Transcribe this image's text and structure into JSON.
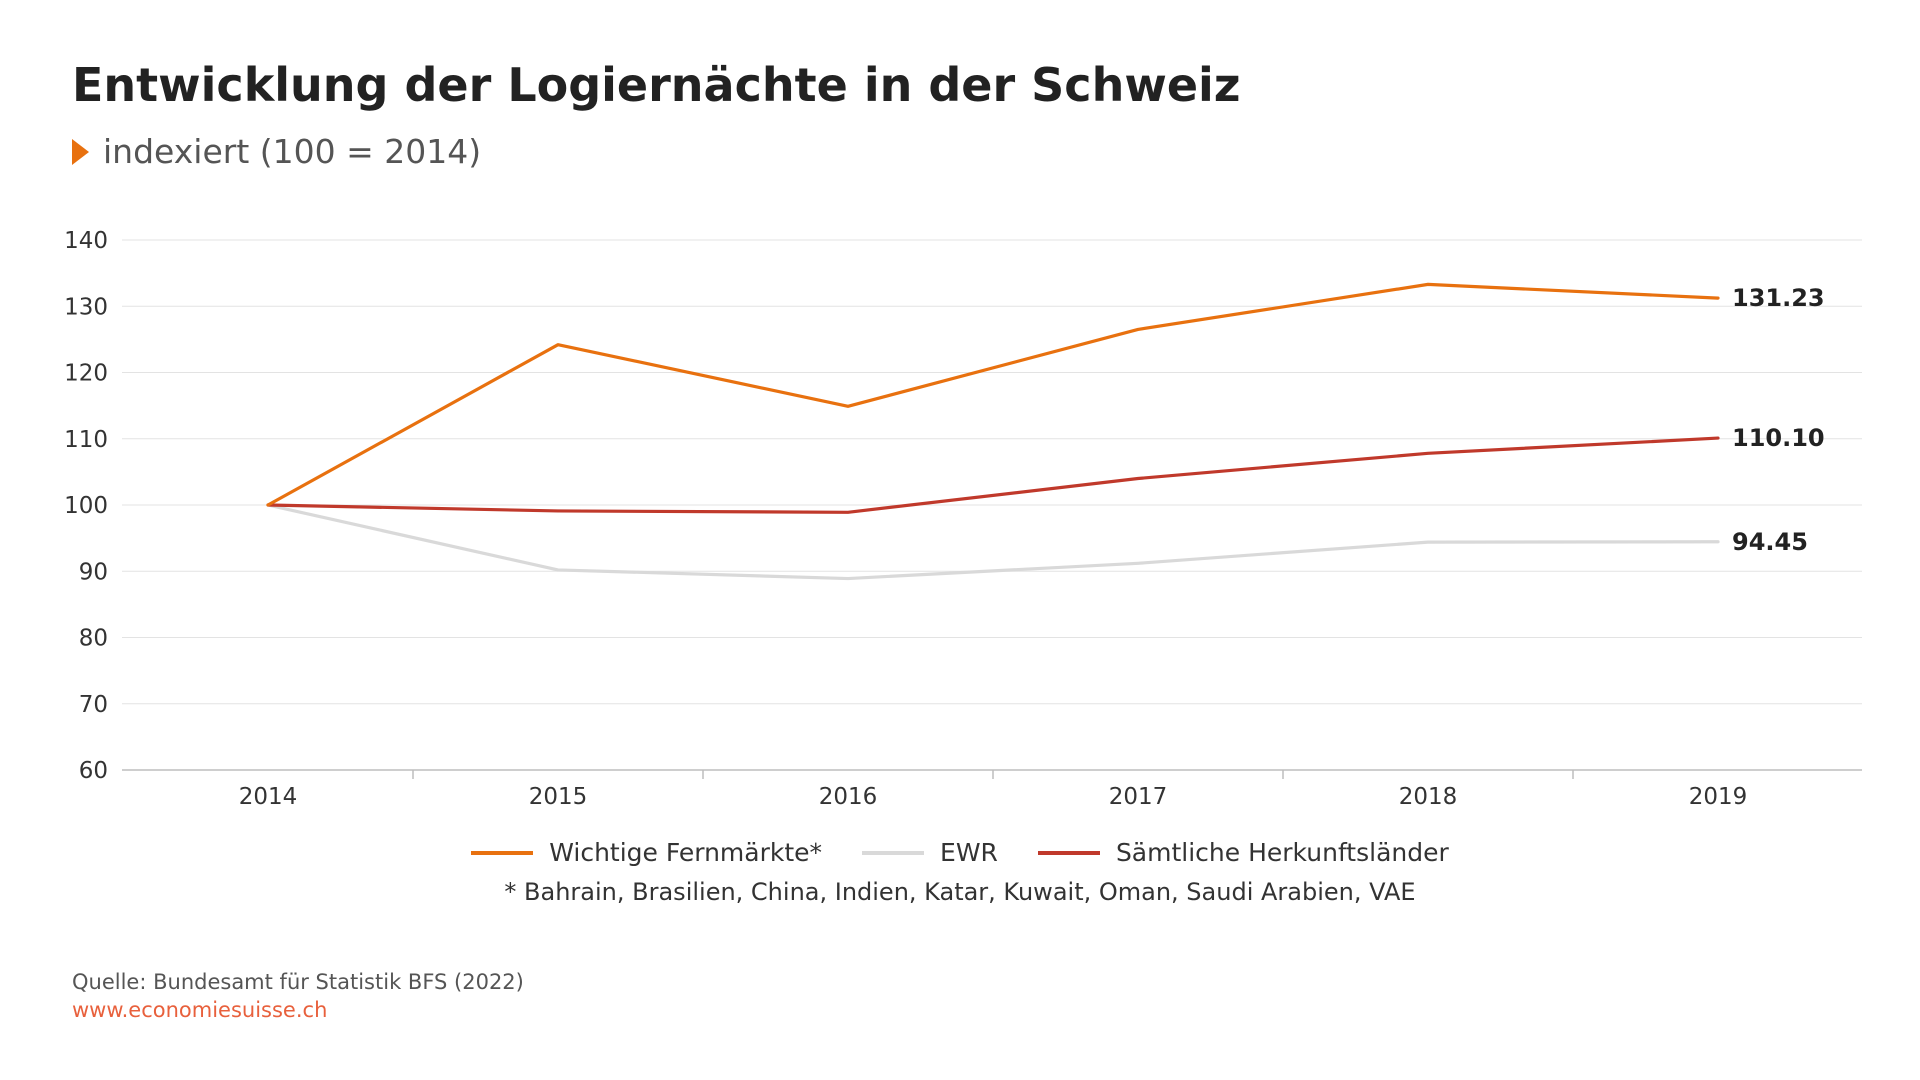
{
  "title": "Entwicklung der Logiernächte in der Schweiz",
  "subtitle": "indexiert (100 = 2014)",
  "footnote": "* Bahrain, Brasilien, China, Indien, Katar, Kuwait, Oman, Saudi Arabien, VAE",
  "source": "Quelle: Bundesamt für Statistik BFS (2022)",
  "url": "www.economiesuisse.ch",
  "colors": {
    "accent": "#e8710f",
    "fernmaerkte": "#e8710f",
    "ewr": "#d9d9d9",
    "alle": "#c0392b",
    "url": "#e8603c"
  },
  "chart_data": {
    "type": "line",
    "x": [
      "2014",
      "2015",
      "2016",
      "2017",
      "2018",
      "2019"
    ],
    "ylim": [
      60,
      140
    ],
    "yticks": [
      60,
      70,
      80,
      90,
      100,
      110,
      120,
      130,
      140
    ],
    "grid": true,
    "legend_position": "bottom",
    "series": [
      {
        "name": "Wichtige Fernmärkte*",
        "color": "#e8710f",
        "values": [
          100,
          124.2,
          114.9,
          126.5,
          133.3,
          131.23
        ],
        "end_label": "131.23"
      },
      {
        "name": "EWR",
        "color": "#d9d9d9",
        "values": [
          100,
          90.2,
          88.9,
          91.2,
          94.4,
          94.45
        ],
        "end_label": "94.45"
      },
      {
        "name": "Sämtliche Herkunftsländer",
        "color": "#c0392b",
        "values": [
          100,
          99.1,
          98.9,
          104.0,
          107.8,
          110.1
        ],
        "end_label": "110.10"
      }
    ]
  }
}
